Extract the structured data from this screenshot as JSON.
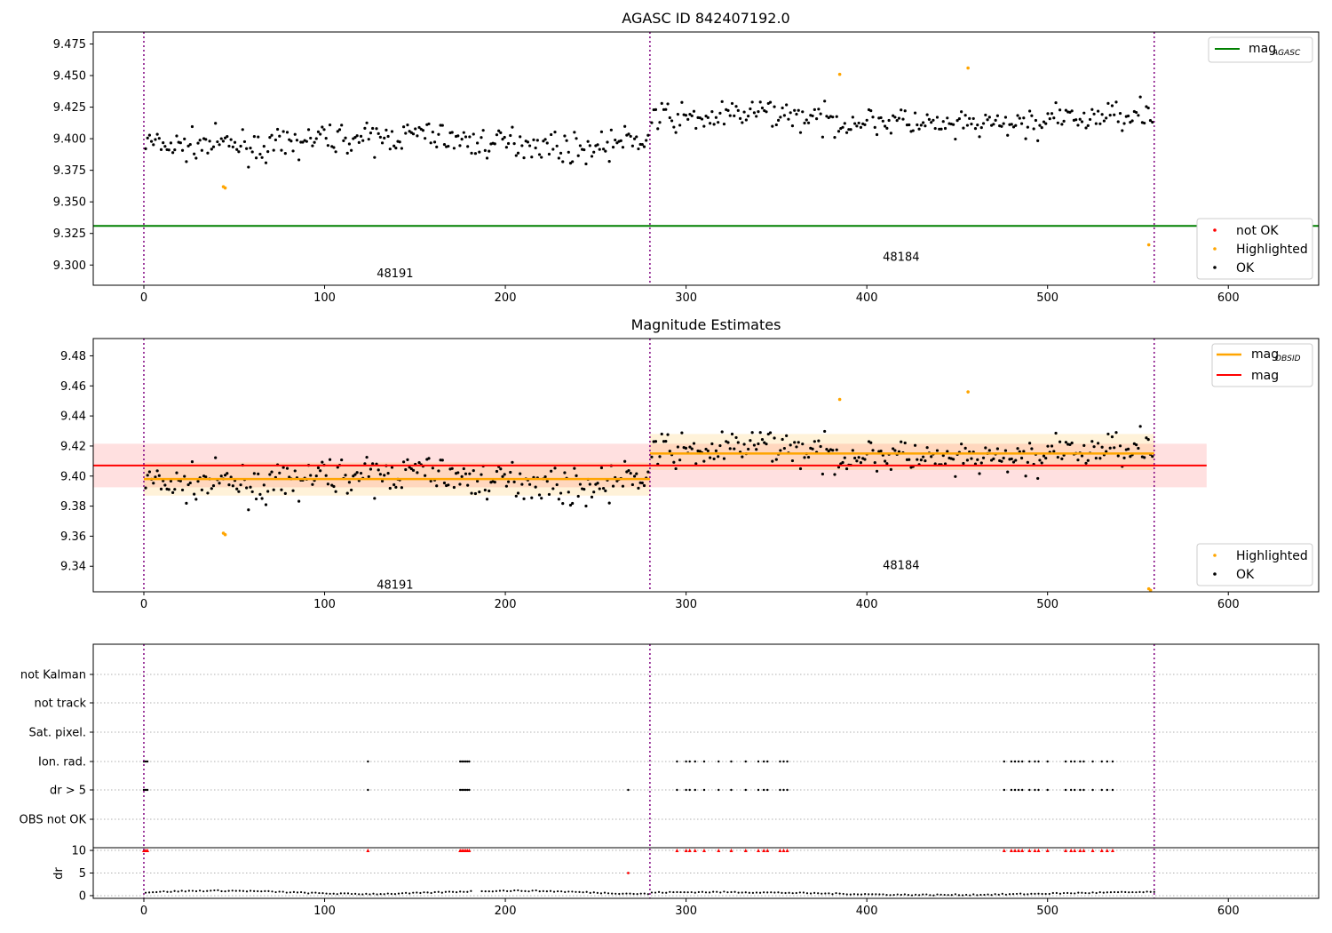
{
  "figure_title": "AGASC ID 842407192.0",
  "colors": {
    "ok": "#000000",
    "highlighted": "#ffa500",
    "not_ok": "#ff0000",
    "mag_agasc": "#008000",
    "mag_obsid": "#ffa500",
    "mag": "#ff0000",
    "obs_boundary": "#800080"
  },
  "chart_data": [
    {
      "type": "scatter",
      "title": "",
      "xlim": [
        -28,
        650
      ],
      "ylim": [
        9.284,
        9.4845
      ],
      "xticks": [
        0,
        100,
        200,
        300,
        400,
        500,
        600
      ],
      "yticks": [
        9.3,
        9.325,
        9.35,
        9.375,
        9.4,
        9.425,
        9.45,
        9.475
      ],
      "grid": false,
      "obs_boundaries": [
        0,
        280,
        559
      ],
      "obsid_labels": [
        {
          "text": "48191",
          "x": 139,
          "y": 9.294
        },
        {
          "text": "48184",
          "x": 419,
          "y": 9.307
        }
      ],
      "mag_agasc": 9.331,
      "legend_lines": {
        "main": "mag",
        "sub": "AGASC",
        "position": "upper right"
      },
      "legend_points": {
        "entries": [
          "not OK",
          "Highlighted",
          "OK"
        ],
        "position": "lower right"
      },
      "highlighted_points": [
        [
          44,
          9.362
        ],
        [
          45,
          9.361
        ],
        [
          385,
          9.451
        ],
        [
          456,
          9.456
        ],
        [
          556,
          9.316
        ]
      ],
      "ok_series": {
        "segments": [
          {
            "x0": 1,
            "x1": 279,
            "n": 260,
            "baseline": 9.398
          },
          {
            "x0": 281,
            "x1": 558,
            "n": 250,
            "baseline": 9.415
          }
        ]
      }
    },
    {
      "type": "scatter",
      "title": "Magnitude Estimates",
      "xlim": [
        -28,
        650
      ],
      "ylim": [
        9.323,
        9.4915
      ],
      "xticks": [
        0,
        100,
        200,
        300,
        400,
        500,
        600
      ],
      "yticks": [
        9.34,
        9.36,
        9.38,
        9.4,
        9.42,
        9.44,
        9.46,
        9.48
      ],
      "grid": false,
      "obs_boundaries": [
        0,
        280,
        559
      ],
      "obsid_labels": [
        {
          "text": "48191",
          "x": 139,
          "y": 9.328
        },
        {
          "text": "48184",
          "x": 419,
          "y": 9.341
        }
      ],
      "mag": {
        "value": 9.407,
        "band": [
          9.3925,
          9.4215
        ],
        "x_range": [
          -28,
          588
        ]
      },
      "mag_obsid": [
        {
          "x0": 0,
          "x1": 280,
          "value": 9.398,
          "band": [
            9.387,
            9.409
          ]
        },
        {
          "x0": 280,
          "x1": 559,
          "value": 9.415,
          "band": [
            9.404,
            9.428
          ]
        }
      ],
      "legend_lines": {
        "entries": [
          {
            "main": "mag",
            "sub": "OBSID"
          },
          {
            "main": "mag",
            "sub": ""
          }
        ],
        "position": "upper right"
      },
      "legend_points": {
        "entries": [
          "Highlighted",
          "OK"
        ],
        "position": "lower right"
      },
      "highlighted_points": [
        [
          44,
          9.362
        ],
        [
          45,
          9.361
        ],
        [
          385,
          9.451
        ],
        [
          456,
          9.456
        ],
        [
          556,
          9.325
        ],
        [
          557,
          9.324
        ]
      ]
    },
    {
      "type": "scatter",
      "title": "",
      "xlim": [
        -28,
        650
      ],
      "xticks": [
        0,
        100,
        200,
        300,
        400,
        500,
        600
      ],
      "obs_boundaries": [
        0,
        280,
        559
      ],
      "flag_labels": [
        "not Kalman",
        "not track",
        "Sat. pixel.",
        "Ion. rad.",
        "dr > 5",
        "OBS not OK"
      ],
      "flag_rows": {
        "Ion. rad.": [
          0,
          1,
          2,
          124,
          175,
          176,
          177,
          178,
          179,
          180,
          295,
          300,
          302,
          305,
          310,
          318,
          325,
          333,
          340,
          343,
          345,
          352,
          354,
          356,
          476,
          480,
          482,
          484,
          486,
          490,
          493,
          495,
          500,
          510,
          513,
          515,
          518,
          520,
          525,
          530,
          533,
          536
        ],
        "dr > 5": [
          0,
          1,
          2,
          124,
          175,
          176,
          177,
          178,
          179,
          180,
          268,
          295,
          300,
          302,
          305,
          310,
          318,
          325,
          333,
          340,
          343,
          345,
          352,
          354,
          356,
          476,
          480,
          482,
          484,
          486,
          490,
          493,
          495,
          500,
          510,
          513,
          515,
          518,
          520,
          525,
          530,
          533,
          536
        ]
      },
      "dr_axis": {
        "ylabel": "dr",
        "yticks": [
          0,
          5,
          10
        ],
        "ylim": [
          -0.6,
          10.6
        ],
        "clipped_value": 10,
        "red_points": [
          0,
          1,
          2,
          124,
          175,
          176,
          177,
          178,
          179,
          180,
          295,
          300,
          302,
          305,
          310,
          318,
          325,
          333,
          340,
          343,
          345,
          352,
          354,
          356,
          476,
          480,
          482,
          484,
          486,
          490,
          493,
          495,
          500,
          510,
          513,
          515,
          518,
          520,
          525,
          530,
          533,
          536
        ],
        "extra_point": [
          268,
          5.0
        ]
      }
    }
  ]
}
